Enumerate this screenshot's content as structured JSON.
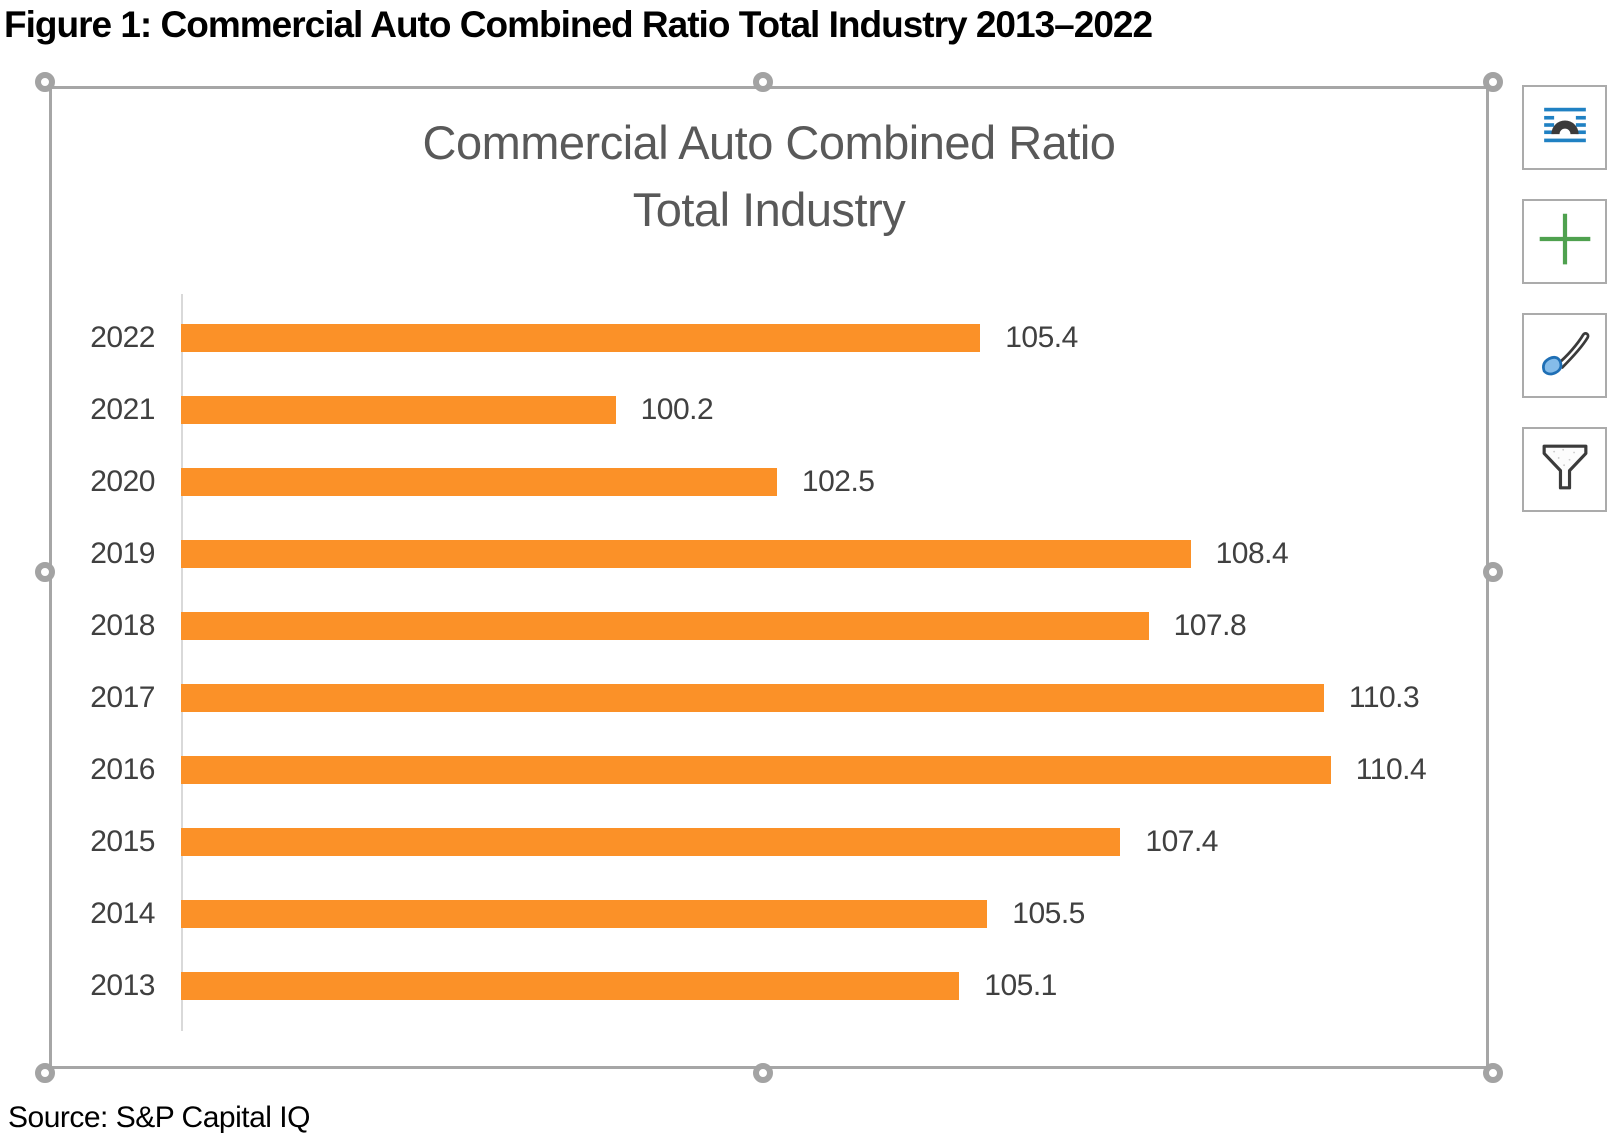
{
  "page": {
    "caption": "Figure 1: Commercial Auto Combined Ratio Total Industry 2013–2022",
    "source": "Source: S&P Capital IQ"
  },
  "chart": {
    "title_line1": "Commercial Auto Combined Ratio",
    "title_line2": "Total Industry"
  },
  "chart_data": {
    "type": "bar",
    "orientation": "horizontal",
    "title": "Commercial Auto Combined Ratio Total Industry",
    "categories": [
      "2022",
      "2021",
      "2020",
      "2019",
      "2018",
      "2017",
      "2016",
      "2015",
      "2014",
      "2013"
    ],
    "values": [
      105.4,
      100.2,
      102.5,
      108.4,
      107.8,
      110.3,
      110.4,
      107.4,
      105.5,
      105.1
    ],
    "xlim": [
      94,
      112
    ],
    "data_labels": true,
    "gridlines": false,
    "legend": "none",
    "bar_color": "#FB9128"
  },
  "side_toolbar": {
    "buttons": [
      {
        "icon": "layout-options-icon",
        "name": "Layout Options"
      },
      {
        "icon": "chart-elements-plus-icon",
        "name": "Chart Elements"
      },
      {
        "icon": "chart-styles-brush-icon",
        "name": "Chart Styles"
      },
      {
        "icon": "chart-filters-funnel-icon",
        "name": "Chart Filters"
      }
    ]
  },
  "colors": {
    "accent_orange": "#FB9128",
    "title_gray": "#595959",
    "label_gray": "#404040",
    "frame_gray": "#A6A6A6",
    "axis_gray": "#D9D9D9",
    "icon_blue": "#2081C3",
    "icon_green": "#4FA14F",
    "icon_dark": "#3B3B3B"
  }
}
